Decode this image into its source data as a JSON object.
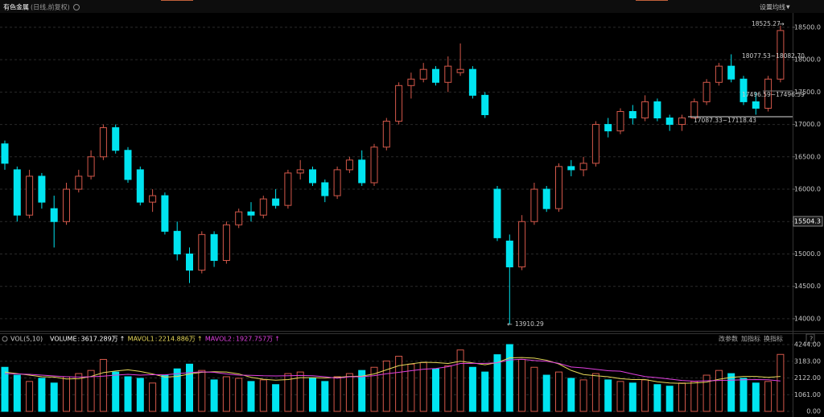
{
  "header": {
    "title": "有色金属",
    "subtitle": "(日线,前复权)",
    "ma_button": "设置均线"
  },
  "chart_data": [
    {
      "type": "candlestick",
      "up_color": "#d4584a",
      "down_color": "#00e4f0",
      "grid": true,
      "ylim": [
        13850,
        18710
      ],
      "yticks": [
        {
          "value": 18500,
          "label": "18500.0"
        },
        {
          "value": 18000,
          "label": "18000.0"
        },
        {
          "value": 17500,
          "label": "17500.0"
        },
        {
          "value": 17000,
          "label": "17000.0"
        },
        {
          "value": 16500,
          "label": "16500.0"
        },
        {
          "value": 16000,
          "label": "16000.0"
        },
        {
          "value": 15500,
          "label": "15500.0"
        },
        {
          "value": 15000,
          "label": "15000.0"
        },
        {
          "value": 14500,
          "label": "14500.0"
        },
        {
          "value": 14000,
          "label": "14000.0"
        }
      ],
      "open": [
        16700,
        16300,
        15600,
        16200,
        15700,
        15500,
        16000,
        16200,
        16500,
        16950,
        16600,
        16300,
        15800,
        15900,
        15350,
        15000,
        14750,
        15300,
        14900,
        15450,
        15650,
        15600,
        15850,
        15750,
        16250,
        16300,
        16100,
        15900,
        16300,
        16450,
        16100,
        16650,
        17050,
        17600,
        17700,
        17850,
        17650,
        17800,
        17850,
        17450,
        16000,
        15200,
        14800,
        15500,
        16000,
        15700,
        16350,
        16300,
        16400,
        17000,
        16900,
        17200,
        17100,
        17350,
        17100,
        17000,
        17100,
        17350,
        17650,
        17900,
        17700,
        17350,
        17250,
        17700
      ],
      "high": [
        16750,
        16350,
        16300,
        16250,
        15900,
        16100,
        16300,
        16600,
        17000,
        17000,
        16650,
        16350,
        16000,
        15950,
        15500,
        15100,
        15350,
        15350,
        15500,
        15700,
        15800,
        15900,
        16000,
        16300,
        16450,
        16350,
        16150,
        16350,
        16500,
        16600,
        16700,
        17100,
        17650,
        17800,
        17950,
        17900,
        18050,
        18250,
        17900,
        17500,
        16050,
        15300,
        15600,
        16100,
        16050,
        16400,
        16450,
        16500,
        17050,
        17100,
        17250,
        17300,
        17450,
        17400,
        17150,
        17150,
        17400,
        17700,
        17950,
        18082.7,
        17750,
        17500,
        17750,
        18525.27
      ],
      "low": [
        16300,
        15500,
        15550,
        15700,
        15100,
        15450,
        15950,
        16150,
        16450,
        16550,
        16100,
        15750,
        15650,
        15300,
        14900,
        14550,
        14700,
        14800,
        14850,
        15400,
        15500,
        15550,
        15700,
        15700,
        16150,
        16050,
        15800,
        15850,
        16250,
        16050,
        16050,
        16600,
        17000,
        17400,
        17650,
        17600,
        17500,
        17750,
        17400,
        17100,
        15200,
        13910.29,
        14750,
        15450,
        15650,
        15650,
        16200,
        16200,
        16350,
        16800,
        16850,
        17000,
        17050,
        17050,
        16900,
        16900,
        17087.33,
        17300,
        17600,
        17650,
        17300,
        17150,
        17200,
        17650
      ],
      "close": [
        16400,
        15600,
        16200,
        15800,
        15500,
        16000,
        16200,
        16500,
        16950,
        16600,
        16150,
        15800,
        15900,
        15350,
        15000,
        14750,
        15300,
        14900,
        15450,
        15650,
        15600,
        15850,
        15750,
        16250,
        16300,
        16100,
        15900,
        16300,
        16450,
        16100,
        16650,
        17050,
        17600,
        17700,
        17850,
        17650,
        17900,
        17850,
        17450,
        17150,
        15250,
        14800,
        15500,
        16000,
        15700,
        16350,
        16300,
        16400,
        17000,
        16900,
        17200,
        17100,
        17350,
        17100,
        17000,
        17100,
        17350,
        17650,
        17900,
        17700,
        17350,
        17250,
        17700,
        18450
      ],
      "annotations": [
        "18525.27",
        "18077.53~18082.70",
        "17496.59~17496.59",
        "17087.33~17118.43",
        "13910.29"
      ],
      "marker_price": 15504.3
    },
    {
      "type": "volume",
      "title": "VOL(5,10)",
      "ylim": [
        0,
        4244
      ],
      "yticks": [
        {
          "value": 4244,
          "label": "4244.00"
        },
        {
          "value": 3183,
          "label": "3183.00"
        },
        {
          "value": 2122,
          "label": "2122.00"
        },
        {
          "value": 1061,
          "label": "1061.00"
        },
        {
          "value": 0,
          "label": "0.00"
        }
      ],
      "series": [
        {
          "name": "VOLUME",
          "last_label": "3617.289万",
          "color": "#ffffff",
          "values": [
            2800,
            2300,
            1900,
            2100,
            1800,
            2200,
            2400,
            2600,
            3300,
            2500,
            2200,
            2100,
            1800,
            2300,
            2700,
            3000,
            2600,
            2000,
            2200,
            2100,
            1900,
            2000,
            1700,
            2400,
            2500,
            2100,
            1900,
            2200,
            2400,
            2600,
            2800,
            3200,
            3500,
            3000,
            3100,
            2700,
            2900,
            3900,
            2800,
            2500,
            3600,
            4244,
            3300,
            2800,
            2300,
            2500,
            2100,
            2000,
            2400,
            2000,
            1900,
            1800,
            2000,
            1700,
            1600,
            1800,
            1900,
            2300,
            2600,
            2400,
            2100,
            1800,
            1900,
            3617.289
          ]
        },
        {
          "name": "MAVOL1",
          "last_label": "2214.886万",
          "color": "#e8d95a",
          "values": [
            2500,
            2400,
            2300,
            2200,
            2180,
            2060,
            2080,
            2220,
            2460,
            2560,
            2640,
            2540,
            2380,
            2180,
            2220,
            2380,
            2480,
            2520,
            2500,
            2380,
            2160,
            2040,
            1980,
            2020,
            2140,
            2140,
            2120,
            2160,
            2220,
            2240,
            2380,
            2640,
            2900,
            3020,
            3120,
            3100,
            3040,
            3180,
            3080,
            2960,
            3100,
            3400,
            3420,
            3380,
            3250,
            3010,
            2600,
            2340,
            2260,
            2200,
            2080,
            2020,
            2020,
            1880,
            1800,
            1780,
            1800,
            1860,
            2040,
            2160,
            2220,
            2220,
            2160,
            2214.886
          ]
        },
        {
          "name": "MAVOL2",
          "last_label": "1927.757万",
          "color": "#e040e0",
          "values": [
            2400,
            2380,
            2350,
            2300,
            2250,
            2200,
            2180,
            2200,
            2240,
            2300,
            2350,
            2300,
            2330,
            2320,
            2390,
            2460,
            2510,
            2480,
            2380,
            2300,
            2290,
            2260,
            2250,
            2260,
            2280,
            2260,
            2200,
            2100,
            2200,
            2200,
            2270,
            2390,
            2480,
            2580,
            2680,
            2720,
            2840,
            3040,
            3050,
            3050,
            3090,
            3270,
            3310,
            3230,
            3180,
            3050,
            2820,
            2760,
            2670,
            2580,
            2550,
            2370,
            2210,
            2140,
            2050,
            1960,
            1920,
            1940,
            1960,
            1980,
            2010,
            2020,
            2010,
            1927.757
          ]
        }
      ],
      "buttons": [
        "改参数",
        "加指标",
        "换指标"
      ]
    }
  ]
}
